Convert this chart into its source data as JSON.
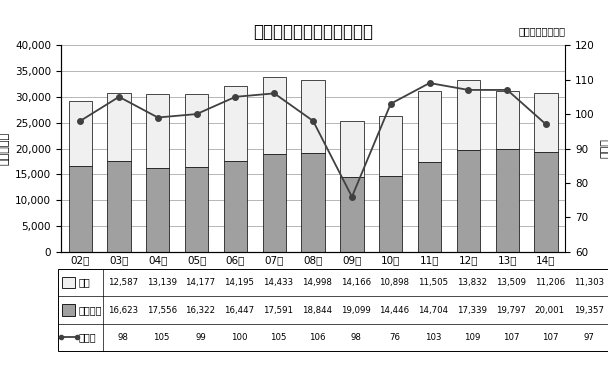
{
  "title": "ゴムベルト需要実績と予測",
  "subtitle": "日本ベルト工業会",
  "years": [
    "02年",
    "03年",
    "04年",
    "05年",
    "06年",
    "07年",
    "08年",
    "09年",
    "10年",
    "11年",
    "12年",
    "13年",
    "14年"
  ],
  "denso": [
    12587,
    13139,
    14177,
    14195,
    14433,
    14998,
    14166,
    10898,
    11505,
    13832,
    13509,
    11206,
    11303
  ],
  "conveyor": [
    16623,
    17556,
    16322,
    16447,
    17591,
    18844,
    19099,
    14446,
    14704,
    17339,
    19797,
    20001,
    19357
  ],
  "yoy": [
    98,
    105,
    99,
    100,
    105,
    106,
    98,
    76,
    103,
    109,
    107,
    107,
    97
  ],
  "bar_color_denso": "#f0f0f0",
  "bar_color_conveyor": "#a0a0a0",
  "line_color": "#404040",
  "ylabel_left": "（ｃトン）",
  "ylabel_right": "（兆）",
  "ylim_left": [
    0,
    40000
  ],
  "ylim_right": [
    60,
    120
  ],
  "yticks_left": [
    0,
    5000,
    10000,
    15000,
    20000,
    25000,
    30000,
    35000,
    40000
  ],
  "yticks_right": [
    60,
    70,
    80,
    90,
    100,
    110,
    120
  ],
  "legend_labels": [
    "伝動",
    "コンベヤ",
    "前年比"
  ]
}
